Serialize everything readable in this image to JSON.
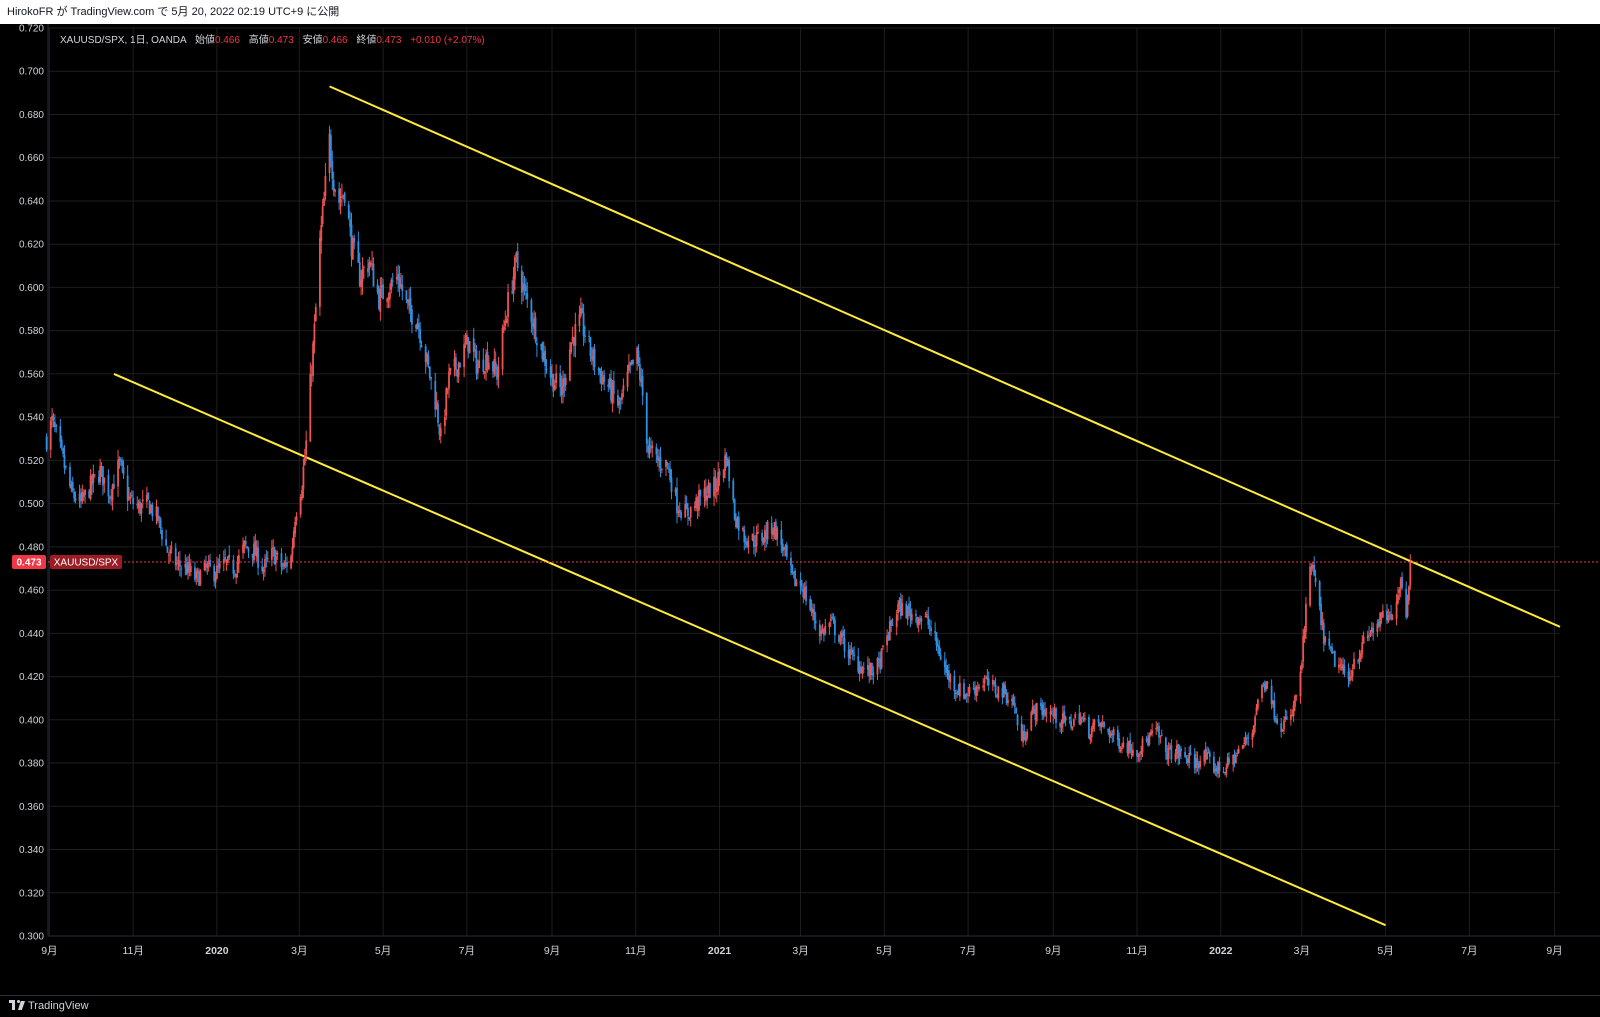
{
  "header": {
    "published_line": "HirokoFR が TradingView.com で 5月 20, 2022 02:19 UTC+9 に公開"
  },
  "legend": {
    "symbol": "XAUUSD/SPX, 1日, OANDA",
    "open_label": "始値",
    "open_value": "0.466",
    "high_label": "高値",
    "high_value": "0.473",
    "low_label": "安値",
    "low_value": "0.466",
    "close_label": "終値",
    "close_value": "0.473",
    "change": "+0.010 (+2.07%)"
  },
  "price_badge": {
    "value": "0.473",
    "symbol": "XAUUSD/SPX"
  },
  "footer": {
    "brand": "TradingView"
  },
  "colors": {
    "background": "#000000",
    "grid": "#1e1e1e",
    "up_candle": "#ef5350",
    "down_candle": "#2f8fe0",
    "trendline": "#ffeb3b",
    "price_line": "#f23645",
    "axis_text": "#d1d4dc"
  },
  "chart_data": {
    "type": "candlestick",
    "title": "",
    "symbol": "XAUUSD/SPX",
    "interval": "1日",
    "source": "OANDA",
    "ylim": [
      0.3,
      0.72
    ],
    "xlim": [
      "2019-08-31",
      "2022-09-05"
    ],
    "grid": true,
    "y_ticks": [
      "0.300",
      "0.320",
      "0.340",
      "0.360",
      "0.380",
      "0.400",
      "0.420",
      "0.440",
      "0.460",
      "0.480",
      "0.500",
      "0.520",
      "0.540",
      "0.560",
      "0.580",
      "0.600",
      "0.620",
      "0.640",
      "0.660",
      "0.680",
      "0.700",
      "0.720"
    ],
    "x_ticks": [
      {
        "label": "9月",
        "date": "2019-09-01"
      },
      {
        "label": "11月",
        "date": "2019-11-01"
      },
      {
        "label": "2020",
        "date": "2020-01-01"
      },
      {
        "label": "3月",
        "date": "2020-03-01"
      },
      {
        "label": "5月",
        "date": "2020-05-01"
      },
      {
        "label": "7月",
        "date": "2020-07-01"
      },
      {
        "label": "9月",
        "date": "2020-09-01"
      },
      {
        "label": "11月",
        "date": "2020-11-01"
      },
      {
        "label": "2021",
        "date": "2021-01-01"
      },
      {
        "label": "3月",
        "date": "2021-03-01"
      },
      {
        "label": "5月",
        "date": "2021-05-01"
      },
      {
        "label": "7月",
        "date": "2021-07-01"
      },
      {
        "label": "9月",
        "date": "2021-09-01"
      },
      {
        "label": "11月",
        "date": "2021-11-01"
      },
      {
        "label": "2022",
        "date": "2022-01-01"
      },
      {
        "label": "3月",
        "date": "2022-03-01"
      },
      {
        "label": "5月",
        "date": "2022-05-01"
      },
      {
        "label": "7月",
        "date": "2022-07-01"
      },
      {
        "label": "9月",
        "date": "2022-09-01"
      }
    ],
    "price_path": [
      [
        "2019-08-30",
        0.53
      ],
      [
        "2019-09-03",
        0.538
      ],
      [
        "2019-09-10",
        0.522
      ],
      [
        "2019-09-17",
        0.505
      ],
      [
        "2019-09-24",
        0.5
      ],
      [
        "2019-10-01",
        0.508
      ],
      [
        "2019-10-08",
        0.515
      ],
      [
        "2019-10-15",
        0.505
      ],
      [
        "2019-10-22",
        0.518
      ],
      [
        "2019-10-29",
        0.502
      ],
      [
        "2019-11-05",
        0.498
      ],
      [
        "2019-11-12",
        0.5
      ],
      [
        "2019-11-19",
        0.493
      ],
      [
        "2019-11-26",
        0.478
      ],
      [
        "2019-12-03",
        0.472
      ],
      [
        "2019-12-10",
        0.47
      ],
      [
        "2019-12-17",
        0.465
      ],
      [
        "2019-12-24",
        0.47
      ],
      [
        "2019-12-31",
        0.468
      ],
      [
        "2020-01-07",
        0.472
      ],
      [
        "2020-01-14",
        0.47
      ],
      [
        "2020-01-21",
        0.48
      ],
      [
        "2020-01-28",
        0.478
      ],
      [
        "2020-02-04",
        0.47
      ],
      [
        "2020-02-11",
        0.477
      ],
      [
        "2020-02-18",
        0.47
      ],
      [
        "2020-02-24",
        0.475
      ],
      [
        "2020-02-27",
        0.495
      ],
      [
        "2020-03-03",
        0.51
      ],
      [
        "2020-03-06",
        0.528
      ],
      [
        "2020-03-09",
        0.555
      ],
      [
        "2020-03-12",
        0.58
      ],
      [
        "2020-03-16",
        0.62
      ],
      [
        "2020-03-19",
        0.64
      ],
      [
        "2020-03-23",
        0.668
      ],
      [
        "2020-03-26",
        0.65
      ],
      [
        "2020-03-30",
        0.64
      ],
      [
        "2020-04-03",
        0.645
      ],
      [
        "2020-04-08",
        0.62
      ],
      [
        "2020-04-14",
        0.605
      ],
      [
        "2020-04-21",
        0.612
      ],
      [
        "2020-04-28",
        0.595
      ],
      [
        "2020-05-05",
        0.6
      ],
      [
        "2020-05-12",
        0.605
      ],
      [
        "2020-05-19",
        0.59
      ],
      [
        "2020-05-26",
        0.585
      ],
      [
        "2020-06-02",
        0.565
      ],
      [
        "2020-06-09",
        0.545
      ],
      [
        "2020-06-12",
        0.53
      ],
      [
        "2020-06-18",
        0.558
      ],
      [
        "2020-06-25",
        0.565
      ],
      [
        "2020-07-02",
        0.575
      ],
      [
        "2020-07-09",
        0.563
      ],
      [
        "2020-07-16",
        0.568
      ],
      [
        "2020-07-23",
        0.56
      ],
      [
        "2020-07-30",
        0.59
      ],
      [
        "2020-08-06",
        0.612
      ],
      [
        "2020-08-11",
        0.6
      ],
      [
        "2020-08-18",
        0.585
      ],
      [
        "2020-08-25",
        0.57
      ],
      [
        "2020-09-01",
        0.558
      ],
      [
        "2020-09-08",
        0.552
      ],
      [
        "2020-09-15",
        0.575
      ],
      [
        "2020-09-22",
        0.585
      ],
      [
        "2020-09-29",
        0.57
      ],
      [
        "2020-10-06",
        0.56
      ],
      [
        "2020-10-13",
        0.553
      ],
      [
        "2020-10-20",
        0.545
      ],
      [
        "2020-10-27",
        0.56
      ],
      [
        "2020-11-02",
        0.568
      ],
      [
        "2020-11-06",
        0.55
      ],
      [
        "2020-11-10",
        0.525
      ],
      [
        "2020-11-17",
        0.52
      ],
      [
        "2020-11-24",
        0.518
      ],
      [
        "2020-12-01",
        0.5
      ],
      [
        "2020-12-08",
        0.495
      ],
      [
        "2020-12-15",
        0.5
      ],
      [
        "2020-12-22",
        0.505
      ],
      [
        "2020-12-29",
        0.508
      ],
      [
        "2021-01-06",
        0.522
      ],
      [
        "2021-01-12",
        0.495
      ],
      [
        "2021-01-19",
        0.485
      ],
      [
        "2021-01-26",
        0.483
      ],
      [
        "2021-02-02",
        0.485
      ],
      [
        "2021-02-09",
        0.49
      ],
      [
        "2021-02-16",
        0.48
      ],
      [
        "2021-02-23",
        0.465
      ],
      [
        "2021-03-02",
        0.462
      ],
      [
        "2021-03-09",
        0.45
      ],
      [
        "2021-03-16",
        0.44
      ],
      [
        "2021-03-23",
        0.445
      ],
      [
        "2021-03-30",
        0.438
      ],
      [
        "2021-04-06",
        0.43
      ],
      [
        "2021-04-13",
        0.425
      ],
      [
        "2021-04-20",
        0.422
      ],
      [
        "2021-04-27",
        0.425
      ],
      [
        "2021-05-04",
        0.44
      ],
      [
        "2021-05-11",
        0.452
      ],
      [
        "2021-05-18",
        0.45
      ],
      [
        "2021-05-25",
        0.448
      ],
      [
        "2021-06-01",
        0.446
      ],
      [
        "2021-06-08",
        0.435
      ],
      [
        "2021-06-15",
        0.422
      ],
      [
        "2021-06-22",
        0.415
      ],
      [
        "2021-06-29",
        0.412
      ],
      [
        "2021-07-06",
        0.415
      ],
      [
        "2021-07-13",
        0.418
      ],
      [
        "2021-07-20",
        0.414
      ],
      [
        "2021-07-27",
        0.413
      ],
      [
        "2021-08-03",
        0.408
      ],
      [
        "2021-08-09",
        0.39
      ],
      [
        "2021-08-16",
        0.403
      ],
      [
        "2021-08-23",
        0.405
      ],
      [
        "2021-08-30",
        0.403
      ],
      [
        "2021-09-06",
        0.4
      ],
      [
        "2021-09-13",
        0.398
      ],
      [
        "2021-09-20",
        0.402
      ],
      [
        "2021-09-27",
        0.395
      ],
      [
        "2021-10-04",
        0.398
      ],
      [
        "2021-10-11",
        0.395
      ],
      [
        "2021-10-18",
        0.39
      ],
      [
        "2021-10-25",
        0.388
      ],
      [
        "2021-11-01",
        0.386
      ],
      [
        "2021-11-08",
        0.39
      ],
      [
        "2021-11-15",
        0.395
      ],
      [
        "2021-11-22",
        0.385
      ],
      [
        "2021-11-29",
        0.385
      ],
      [
        "2021-12-06",
        0.383
      ],
      [
        "2021-12-13",
        0.38
      ],
      [
        "2021-12-20",
        0.383
      ],
      [
        "2021-12-27",
        0.378
      ],
      [
        "2022-01-03",
        0.377
      ],
      [
        "2022-01-10",
        0.382
      ],
      [
        "2022-01-17",
        0.388
      ],
      [
        "2022-01-24",
        0.395
      ],
      [
        "2022-01-28",
        0.41
      ],
      [
        "2022-02-04",
        0.42
      ],
      [
        "2022-02-08",
        0.405
      ],
      [
        "2022-02-14",
        0.398
      ],
      [
        "2022-02-21",
        0.4
      ],
      [
        "2022-02-28",
        0.42
      ],
      [
        "2022-03-04",
        0.45
      ],
      [
        "2022-03-08",
        0.472
      ],
      [
        "2022-03-11",
        0.462
      ],
      [
        "2022-03-15",
        0.445
      ],
      [
        "2022-03-18",
        0.436
      ],
      [
        "2022-03-22",
        0.43
      ],
      [
        "2022-03-28",
        0.425
      ],
      [
        "2022-04-04",
        0.418
      ],
      [
        "2022-04-08",
        0.428
      ],
      [
        "2022-04-13",
        0.432
      ],
      [
        "2022-04-19",
        0.44
      ],
      [
        "2022-04-26",
        0.445
      ],
      [
        "2022-05-02",
        0.448
      ],
      [
        "2022-05-06",
        0.445
      ],
      [
        "2022-05-09",
        0.458
      ],
      [
        "2022-05-12",
        0.466
      ],
      [
        "2022-05-16",
        0.45
      ],
      [
        "2022-05-19",
        0.473
      ]
    ],
    "trendlines": [
      {
        "name": "upper",
        "x1": "2020-03-23",
        "y1": 0.693,
        "x2": "2022-09-05",
        "y2": 0.443
      },
      {
        "name": "lower",
        "x1": "2019-10-18",
        "y1": 0.56,
        "x2": "2022-05-01",
        "y2": 0.305
      }
    ],
    "last_price": 0.473
  }
}
